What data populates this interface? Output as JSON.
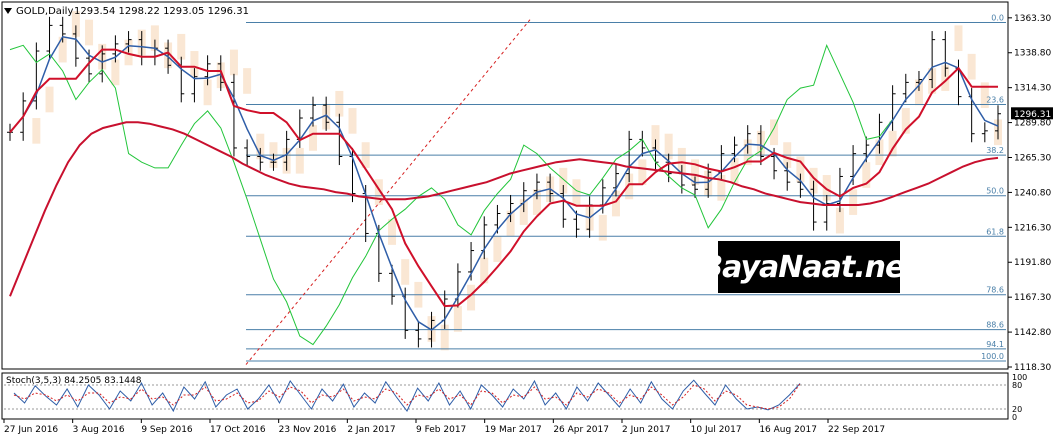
{
  "header": {
    "symbol_label": "GOLD,Daily",
    "ohlc": "1293.54 1298.22 1293.05 1296.31"
  },
  "logo": {
    "text": "BayaNaat.net"
  },
  "colors": {
    "price": "#000000",
    "ma_slow": "#c8102e",
    "ma_kijun": "#d0102a",
    "tenkan": "#2f5ea8",
    "chikou": "#22c53a",
    "cloud": "#f5c9a0",
    "fib": "#4a7fa8",
    "trendline": "#d62020",
    "stoch_main": "#2f5ea8",
    "stoch_signal": "#d62020",
    "price_tag_bg": "#000000"
  },
  "chart_data": [
    {
      "type": "candlestick",
      "title": "GOLD,Daily",
      "ylim": [
        1118.3,
        1373
      ],
      "y_ticks": [
        1363.3,
        1338.8,
        1314.3,
        1289.8,
        1265.3,
        1240.8,
        1216.3,
        1191.8,
        1167.3,
        1142.8,
        1118.3
      ],
      "y_tick_labels": [
        "1363.30",
        "1338.80",
        "1314.30",
        "1289.80",
        "1265.30",
        "1240.80",
        "1216.30",
        "1191.80",
        "1167.30",
        "1142.80",
        "1118.30"
      ],
      "current_price": 1296.31,
      "current_price_label": "1296.31",
      "x_tick_labels": [
        "27 Jun 2016",
        "3 Aug 2016",
        "9 Sep 2016",
        "17 Oct 2016",
        "23 Nov 2016",
        "2 Jan 2017",
        "9 Feb 2017",
        "19 Mar 2017",
        "26 Apr 2017",
        "2 Jun 2017",
        "10 Jul 2017",
        "16 Aug 2017",
        "22 Sep 2017"
      ],
      "fibonacci": {
        "levels": [
          {
            "label": "0.0",
            "price": 1360.0
          },
          {
            "label": "23.6",
            "price": 1302.5
          },
          {
            "label": "38.2",
            "price": 1267.0
          },
          {
            "label": "50.0",
            "price": 1238.5
          },
          {
            "label": "61.8",
            "price": 1210.0
          },
          {
            "label": "78.6",
            "price": 1169.0
          },
          {
            "label": "88.6",
            "price": 1144.5
          },
          {
            "label": "94.1",
            "price": 1131.0
          },
          {
            "label": "100.0",
            "price": 1122.5
          }
        ]
      },
      "series": [
        {
          "role": "price",
          "values": [
            1283,
            1305,
            1340,
            1358,
            1352,
            1335,
            1324,
            1338,
            1345,
            1348,
            1336,
            1342,
            1330,
            1310,
            1322,
            1331,
            1318,
            1272,
            1266,
            1262,
            1262,
            1278,
            1293,
            1302,
            1290,
            1266,
            1240,
            1212,
            1184,
            1168,
            1144,
            1138,
            1151,
            1166,
            1185,
            1200,
            1218,
            1226,
            1233,
            1242,
            1248,
            1240,
            1222,
            1215,
            1232,
            1244,
            1254,
            1278,
            1272,
            1262,
            1254,
            1246,
            1243,
            1255,
            1268,
            1274,
            1282,
            1266,
            1256,
            1248,
            1243,
            1220,
            1233,
            1252,
            1268,
            1274,
            1290,
            1310,
            1318,
            1320,
            1348,
            1328,
            1308,
            1282,
            1284,
            1296
          ]
        },
        {
          "role": "ma_slow",
          "values": [
            1168,
            1188,
            1208,
            1228,
            1246,
            1262,
            1274,
            1282,
            1286,
            1288,
            1290,
            1290,
            1289,
            1287,
            1285,
            1282,
            1278,
            1274,
            1270,
            1266,
            1261,
            1257,
            1253,
            1250,
            1247,
            1245,
            1244,
            1243,
            1241,
            1240,
            1238,
            1237,
            1236,
            1236,
            1236,
            1237,
            1238,
            1240,
            1242,
            1244,
            1246,
            1248,
            1251,
            1254,
            1256,
            1258,
            1260,
            1262,
            1263,
            1264,
            1263,
            1262,
            1261,
            1259,
            1258,
            1257,
            1256,
            1255,
            1254,
            1253,
            1251,
            1250,
            1248,
            1245,
            1243,
            1240,
            1238,
            1236,
            1234,
            1233,
            1232,
            1232,
            1232,
            1232,
            1233,
            1235,
            1238,
            1241,
            1244,
            1247,
            1251,
            1255,
            1259,
            1262,
            1264,
            1265
          ]
        }
      ]
    },
    {
      "type": "line",
      "title": "Stoch(3,5,3) 84.2505 83.1448",
      "ylim": [
        0,
        100
      ],
      "y_tick_labels": [
        "100",
        "80",
        "20",
        "0"
      ],
      "series": [
        {
          "role": "main",
          "values": [
            60,
            35,
            78,
            52,
            30,
            70,
            25,
            80,
            55,
            20,
            65,
            40,
            85,
            30,
            60,
            15,
            75,
            45,
            88,
            25,
            55,
            70,
            20,
            45,
            80,
            35,
            90,
            55,
            20,
            70,
            40,
            82,
            25,
            60,
            35,
            88,
            50,
            15,
            72,
            40,
            85,
            30,
            65,
            20,
            80,
            55,
            25,
            70,
            45,
            90,
            30,
            60,
            20,
            75,
            40,
            85,
            55,
            25,
            70,
            35,
            88,
            45,
            20,
            65,
            92,
            60,
            30,
            80,
            45,
            20,
            25,
            18,
            30,
            55,
            84
          ]
        },
        {
          "role": "signal",
          "values": [
            55,
            45,
            60,
            55,
            40,
            55,
            40,
            60,
            60,
            35,
            50,
            45,
            70,
            45,
            50,
            30,
            55,
            55,
            75,
            40,
            45,
            60,
            35,
            40,
            65,
            50,
            75,
            65,
            35,
            55,
            50,
            70,
            40,
            50,
            45,
            70,
            60,
            30,
            55,
            50,
            70,
            45,
            55,
            30,
            65,
            60,
            35,
            55,
            50,
            75,
            45,
            50,
            30,
            60,
            50,
            70,
            60,
            35,
            55,
            45,
            75,
            55,
            30,
            50,
            80,
            70,
            40,
            65,
            55,
            30,
            25,
            20,
            25,
            45,
            83
          ]
        }
      ]
    }
  ]
}
